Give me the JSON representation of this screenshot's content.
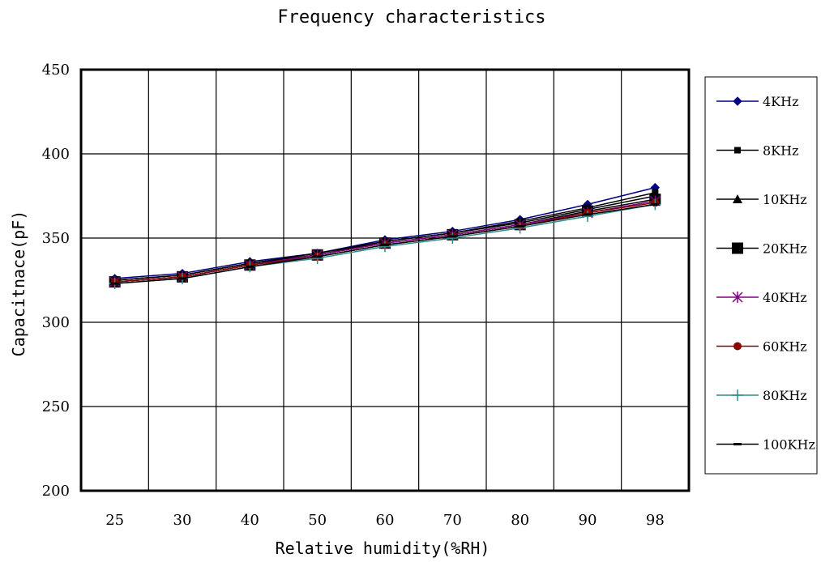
{
  "chart_data": {
    "type": "line",
    "title": "Frequency characteristics",
    "xlabel": "Relative humidity(%RH)",
    "ylabel": "Capacitnace(pF)",
    "categories": [
      "25",
      "30",
      "40",
      "50",
      "60",
      "70",
      "80",
      "90",
      "98"
    ],
    "ylim": [
      200,
      450
    ],
    "yticks": [
      200,
      250,
      300,
      350,
      400,
      450
    ],
    "grid": true,
    "legend_position": "right",
    "series": [
      {
        "name": "4KHz",
        "color": "#000080",
        "marker": "diamond",
        "values": [
          326,
          329,
          336,
          341,
          349,
          354,
          361,
          370,
          380
        ]
      },
      {
        "name": "8KHz",
        "color": "#000000",
        "marker": "square",
        "values": [
          325,
          328,
          335,
          341,
          348,
          353,
          360,
          368,
          377
        ]
      },
      {
        "name": "10KHz",
        "color": "#000000",
        "marker": "triangle",
        "values": [
          325,
          328,
          335,
          340,
          348,
          353,
          359,
          367,
          375
        ]
      },
      {
        "name": "20KHz",
        "color": "#000000",
        "marker": "square-large",
        "values": [
          324,
          327,
          334,
          340,
          347,
          352,
          358,
          366,
          373
        ]
      },
      {
        "name": "40KHz",
        "color": "#800080",
        "marker": "star",
        "values": [
          324,
          327,
          334,
          340,
          347,
          352,
          358,
          365,
          372
        ]
      },
      {
        "name": "60KHz",
        "color": "#8b0000",
        "marker": "circle",
        "values": [
          324,
          327,
          334,
          339,
          346,
          351,
          357,
          365,
          371
        ]
      },
      {
        "name": "80KHz",
        "color": "#2e8b8b",
        "marker": "plus",
        "values": [
          323,
          326,
          333,
          338,
          345,
          350,
          356,
          363,
          370
        ]
      },
      {
        "name": "100KHz",
        "color": "#000000",
        "marker": "dash",
        "values": [
          323,
          326,
          333,
          339,
          346,
          351,
          357,
          364,
          370
        ]
      }
    ]
  }
}
